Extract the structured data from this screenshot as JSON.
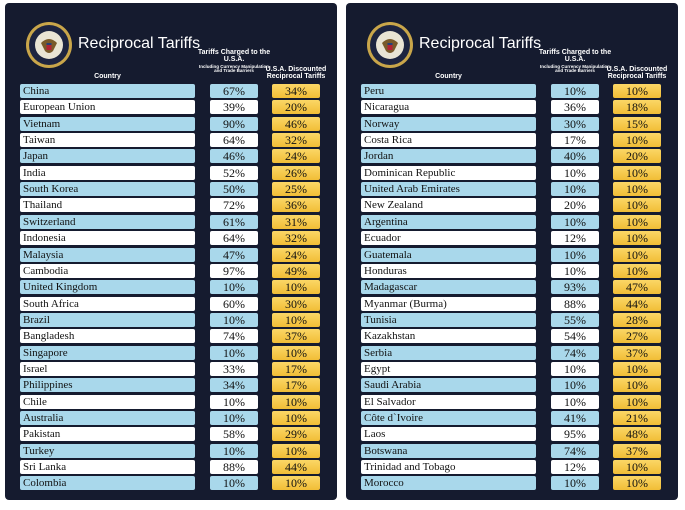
{
  "panels": [
    {
      "title": "Reciprocal Tariffs",
      "headers": {
        "country": "Country",
        "charged": "Tariffs Charged to the U.S.A.",
        "charged_note": "Including Currency Manipulation and Trade Barriers",
        "discounted": "U.S.A. Discounted Reciprocal Tariffs"
      },
      "rows": [
        [
          "China",
          "67%",
          "34%"
        ],
        [
          "European Union",
          "39%",
          "20%"
        ],
        [
          "Vietnam",
          "90%",
          "46%"
        ],
        [
          "Taiwan",
          "64%",
          "32%"
        ],
        [
          "Japan",
          "46%",
          "24%"
        ],
        [
          "India",
          "52%",
          "26%"
        ],
        [
          "South Korea",
          "50%",
          "25%"
        ],
        [
          "Thailand",
          "72%",
          "36%"
        ],
        [
          "Switzerland",
          "61%",
          "31%"
        ],
        [
          "Indonesia",
          "64%",
          "32%"
        ],
        [
          "Malaysia",
          "47%",
          "24%"
        ],
        [
          "Cambodia",
          "97%",
          "49%"
        ],
        [
          "United Kingdom",
          "10%",
          "10%"
        ],
        [
          "South Africa",
          "60%",
          "30%"
        ],
        [
          "Brazil",
          "10%",
          "10%"
        ],
        [
          "Bangladesh",
          "74%",
          "37%"
        ],
        [
          "Singapore",
          "10%",
          "10%"
        ],
        [
          "Israel",
          "33%",
          "17%"
        ],
        [
          "Philippines",
          "34%",
          "17%"
        ],
        [
          "Chile",
          "10%",
          "10%"
        ],
        [
          "Australia",
          "10%",
          "10%"
        ],
        [
          "Pakistan",
          "58%",
          "29%"
        ],
        [
          "Turkey",
          "10%",
          "10%"
        ],
        [
          "Sri Lanka",
          "88%",
          "44%"
        ],
        [
          "Colombia",
          "10%",
          "10%"
        ]
      ]
    },
    {
      "title": "Reciprocal Tariffs",
      "headers": {
        "country": "Country",
        "charged": "Tariffs Charged to the U.S.A.",
        "charged_note": "Including Currency Manipulation and Trade Barriers",
        "discounted": "U.S.A. Discounted Reciprocal Tariffs"
      },
      "rows": [
        [
          "Peru",
          "10%",
          "10%"
        ],
        [
          "Nicaragua",
          "36%",
          "18%"
        ],
        [
          "Norway",
          "30%",
          "15%"
        ],
        [
          "Costa Rica",
          "17%",
          "10%"
        ],
        [
          "Jordan",
          "40%",
          "20%"
        ],
        [
          "Dominican Republic",
          "10%",
          "10%"
        ],
        [
          "United Arab Emirates",
          "10%",
          "10%"
        ],
        [
          "New Zealand",
          "20%",
          "10%"
        ],
        [
          "Argentina",
          "10%",
          "10%"
        ],
        [
          "Ecuador",
          "12%",
          "10%"
        ],
        [
          "Guatemala",
          "10%",
          "10%"
        ],
        [
          "Honduras",
          "10%",
          "10%"
        ],
        [
          "Madagascar",
          "93%",
          "47%"
        ],
        [
          "Myanmar (Burma)",
          "88%",
          "44%"
        ],
        [
          "Tunisia",
          "55%",
          "28%"
        ],
        [
          "Kazakhstan",
          "54%",
          "27%"
        ],
        [
          "Serbia",
          "74%",
          "37%"
        ],
        [
          "Egypt",
          "10%",
          "10%"
        ],
        [
          "Saudi Arabia",
          "10%",
          "10%"
        ],
        [
          "El Salvador",
          "10%",
          "10%"
        ],
        [
          "Côte d`Ivoire",
          "41%",
          "21%"
        ],
        [
          "Laos",
          "95%",
          "48%"
        ],
        [
          "Botswana",
          "74%",
          "37%"
        ],
        [
          "Trinidad and Tobago",
          "12%",
          "10%"
        ],
        [
          "Morocco",
          "10%",
          "10%"
        ]
      ]
    }
  ]
}
